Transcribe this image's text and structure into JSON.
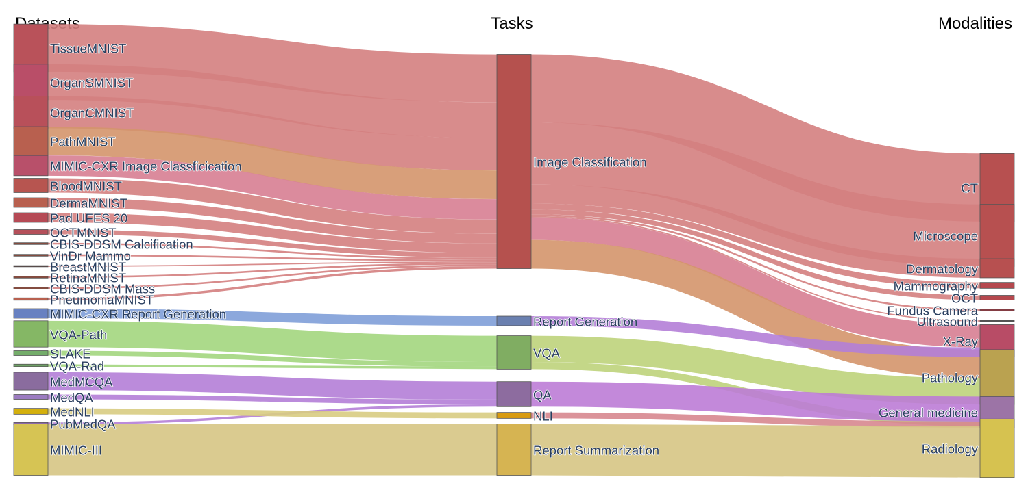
{
  "headers": {
    "datasets": "Datasets",
    "tasks": "Tasks",
    "modalities": "Modalities"
  },
  "colors": {
    "tissuemnist": "#b9525a",
    "organsmnist": "#b94e68",
    "organcmnist": "#b8505a",
    "pathmnist": "#b8604f",
    "mimic_cxr_cls": "#b8506a",
    "bloodmnist": "#b75550",
    "dermamnist": "#b8604f",
    "pad_ufes": "#b54a55",
    "octmnist": "#b5505a",
    "cbis_calc": "#8a4b3e",
    "vindr": "#8a4b3e",
    "breastmnist": "#5a4140",
    "retinamnist": "#8a4b3e",
    "cbis_mass": "#8a4b3e",
    "pneumoniamnist": "#b8604f",
    "mimic_cxr_report": "#6881c1",
    "vqa_path": "#85b765",
    "slake": "#74ad6a",
    "vqa_rad": "#6ea066",
    "medmcqa": "#8a6c9e",
    "medqa": "#9c7cc0",
    "mednli": "#d4b00c",
    "pubmedqa": "#8c6aa8",
    "mimic_iii": "#d6c454",
    "image_classification": "#b5514e",
    "report_generation": "#6a80b0",
    "vqa": "#80ad62",
    "qa": "#8d6c9f",
    "nli": "#d89b12",
    "report_summarization": "#d6b452",
    "ct": "#b75050",
    "microscope": "#b75050",
    "dermatology": "#b75050",
    "mammography": "#b5484e",
    "oct": "#b5484e",
    "fundus_camera": "#8a3b42",
    "ultrasound": "#555555",
    "xray": "#b84c66",
    "pathology": "#baa250",
    "general_medicine": "#9c74a6",
    "radiology": "#d6c250",
    "link_red": "#d47f80",
    "link_orange": "#d4956b",
    "link_pink": "#d77e92",
    "link_blue": "#7f9ed8",
    "link_green": "#a3d67e",
    "link_green_yellow": "#bed37b",
    "link_purple": "#b47ed7",
    "link_magenta": "#bc7cd6",
    "link_khaki": "#d8cc82",
    "link_rose": "#d7878f",
    "link_tan": "#d6c584"
  },
  "nodes": {
    "datasets": [
      {
        "id": "tissuemnist",
        "label": "TissueMNIST"
      },
      {
        "id": "organsmnist",
        "label": "OrganSMNIST"
      },
      {
        "id": "organcmnist",
        "label": "OrganCMNIST"
      },
      {
        "id": "pathmnist",
        "label": "PathMNIST"
      },
      {
        "id": "mimic_cxr_cls",
        "label": "MIMIC-CXR Image Classficication"
      },
      {
        "id": "bloodmnist",
        "label": "BloodMNIST"
      },
      {
        "id": "dermamnist",
        "label": "DermaMNIST"
      },
      {
        "id": "pad_ufes",
        "label": "Pad UFES 20"
      },
      {
        "id": "octmnist",
        "label": "OCTMNIST"
      },
      {
        "id": "cbis_calc",
        "label": "CBIS-DDSM Calcification"
      },
      {
        "id": "vindr",
        "label": "VinDr Mammo"
      },
      {
        "id": "breastmnist",
        "label": "BreastMNIST"
      },
      {
        "id": "retinamnist",
        "label": "RetinaMNIST"
      },
      {
        "id": "cbis_mass",
        "label": "CBIS-DDSM Mass"
      },
      {
        "id": "pneumoniamnist",
        "label": "PneumoniaMNIST"
      },
      {
        "id": "mimic_cxr_report",
        "label": "MIMIC-CXR Report Generation"
      },
      {
        "id": "vqa_path",
        "label": "VQA-Path"
      },
      {
        "id": "slake",
        "label": "SLAKE"
      },
      {
        "id": "vqa_rad",
        "label": "VQA-Rad"
      },
      {
        "id": "medmcqa",
        "label": "MedMCQA"
      },
      {
        "id": "medqa",
        "label": "MedQA"
      },
      {
        "id": "mednli",
        "label": "MedNLI"
      },
      {
        "id": "pubmedqa",
        "label": "PubMedQA"
      },
      {
        "id": "mimic_iii",
        "label": "MIMIC-III"
      }
    ],
    "tasks": [
      {
        "id": "image_classification",
        "label": "Image Classification"
      },
      {
        "id": "report_generation",
        "label": "Report Generation"
      },
      {
        "id": "vqa",
        "label": "VQA"
      },
      {
        "id": "qa",
        "label": "QA"
      },
      {
        "id": "nli",
        "label": "NLI"
      },
      {
        "id": "report_summarization",
        "label": "Report Summarization"
      }
    ],
    "modalities": [
      {
        "id": "ct",
        "label": "CT"
      },
      {
        "id": "microscope",
        "label": "Microscope"
      },
      {
        "id": "dermatology",
        "label": "Dermatology"
      },
      {
        "id": "mammography",
        "label": "Mammography"
      },
      {
        "id": "oct",
        "label": "OCT"
      },
      {
        "id": "fundus_camera",
        "label": "Fundus Camera"
      },
      {
        "id": "ultrasound",
        "label": "Ultrasound"
      },
      {
        "id": "xray",
        "label": "X-Ray"
      },
      {
        "id": "pathology",
        "label": "Pathology"
      },
      {
        "id": "general_medicine",
        "label": "General medicine"
      },
      {
        "id": "radiology",
        "label": "Radiology"
      }
    ]
  },
  "links": [
    {
      "source": "tissuemnist",
      "target": "image_classification",
      "value": 40,
      "color": "link_red"
    },
    {
      "source": "organsmnist",
      "target": "image_classification",
      "value": 30,
      "color": "link_red"
    },
    {
      "source": "organcmnist",
      "target": "image_classification",
      "value": 27,
      "color": "link_red"
    },
    {
      "source": "pathmnist",
      "target": "image_classification",
      "value": 24,
      "color": "link_orange"
    },
    {
      "source": "mimic_cxr_cls",
      "target": "image_classification",
      "value": 17,
      "color": "link_pink"
    },
    {
      "source": "bloodmnist",
      "target": "image_classification",
      "value": 12,
      "color": "link_red"
    },
    {
      "source": "dermamnist",
      "target": "image_classification",
      "value": 8,
      "color": "link_red"
    },
    {
      "source": "pad_ufes",
      "target": "image_classification",
      "value": 8,
      "color": "link_red"
    },
    {
      "source": "octmnist",
      "target": "image_classification",
      "value": 4,
      "color": "link_red"
    },
    {
      "source": "cbis_calc",
      "target": "image_classification",
      "value": 1.5,
      "color": "link_red"
    },
    {
      "source": "vindr",
      "target": "image_classification",
      "value": 1.5,
      "color": "link_red"
    },
    {
      "source": "breastmnist",
      "target": "image_classification",
      "value": 1,
      "color": "link_red"
    },
    {
      "source": "retinamnist",
      "target": "image_classification",
      "value": 1.5,
      "color": "link_red"
    },
    {
      "source": "cbis_mass",
      "target": "image_classification",
      "value": 1.5,
      "color": "link_red"
    },
    {
      "source": "pneumoniamnist",
      "target": "image_classification",
      "value": 2,
      "color": "link_red"
    },
    {
      "source": "mimic_cxr_report",
      "target": "report_generation",
      "value": 8,
      "color": "link_blue"
    },
    {
      "source": "vqa_path",
      "target": "vqa",
      "value": 22,
      "color": "link_green"
    },
    {
      "source": "slake",
      "target": "vqa",
      "value": 4,
      "color": "link_green"
    },
    {
      "source": "vqa_rad",
      "target": "vqa",
      "value": 2,
      "color": "link_green"
    },
    {
      "source": "medmcqa",
      "target": "qa",
      "value": 15,
      "color": "link_purple"
    },
    {
      "source": "medqa",
      "target": "qa",
      "value": 4,
      "color": "link_purple"
    },
    {
      "source": "pubmedqa",
      "target": "qa",
      "value": 2,
      "color": "link_purple"
    },
    {
      "source": "mednli",
      "target": "nli",
      "value": 5,
      "color": "link_khaki"
    },
    {
      "source": "mimic_iii",
      "target": "report_summarization",
      "value": 43,
      "color": "link_tan"
    },
    {
      "source": "image_classification",
      "target": "ct",
      "value": 57,
      "color": "link_red"
    },
    {
      "source": "image_classification",
      "target": "microscope",
      "value": 52,
      "color": "link_red"
    },
    {
      "source": "image_classification",
      "target": "dermatology",
      "value": 16,
      "color": "link_red"
    },
    {
      "source": "image_classification",
      "target": "mammography",
      "value": 5,
      "color": "link_red"
    },
    {
      "source": "image_classification",
      "target": "oct",
      "value": 4,
      "color": "link_red"
    },
    {
      "source": "image_classification",
      "target": "fundus_camera",
      "value": 1.5,
      "color": "link_red"
    },
    {
      "source": "image_classification",
      "target": "ultrasound",
      "value": 1,
      "color": "link_red"
    },
    {
      "source": "image_classification",
      "target": "xray",
      "value": 19,
      "color": "link_pink"
    },
    {
      "source": "image_classification",
      "target": "pathology",
      "value": 24,
      "color": "link_orange"
    },
    {
      "source": "report_generation",
      "target": "xray",
      "value": 8,
      "color": "link_purple"
    },
    {
      "source": "vqa",
      "target": "pathology",
      "value": 22,
      "color": "link_green_yellow"
    },
    {
      "source": "vqa",
      "target": "radiology",
      "value": 6,
      "color": "link_green_yellow"
    },
    {
      "source": "qa",
      "target": "general_medicine",
      "value": 21,
      "color": "link_magenta"
    },
    {
      "source": "nli",
      "target": "general_medicine",
      "value": 5,
      "color": "link_rose"
    },
    {
      "source": "report_summarization",
      "target": "radiology",
      "value": 43,
      "color": "link_tan"
    }
  ]
}
